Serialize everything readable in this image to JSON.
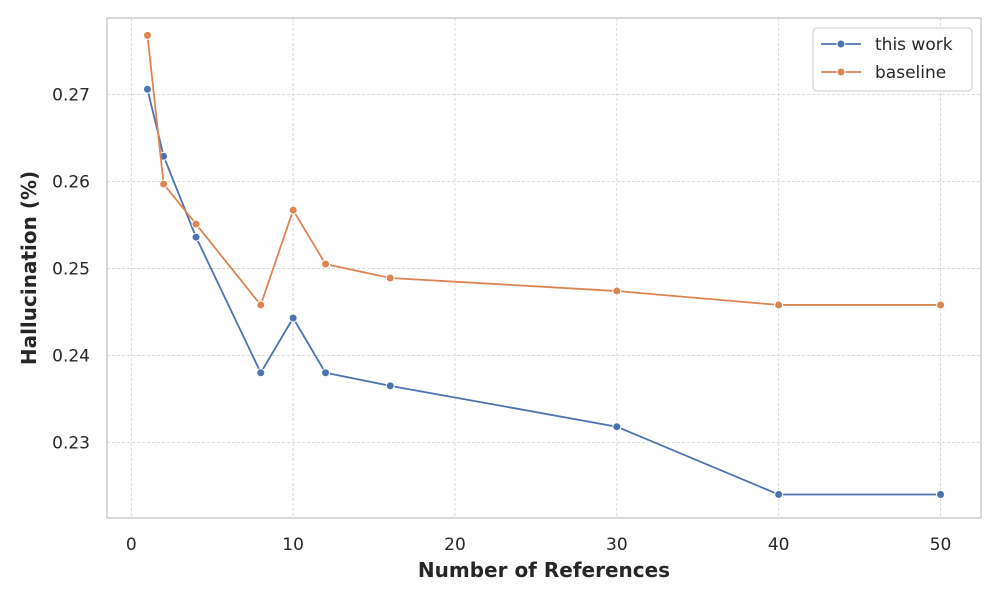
{
  "chart_data": {
    "type": "line",
    "xlabel": "Number of References",
    "ylabel": "Hallucination (%)",
    "xlim": [
      -1.5,
      52.5
    ],
    "ylim": [
      0.2213,
      0.2788
    ],
    "xticks": [
      0,
      10,
      20,
      30,
      40,
      50
    ],
    "yticks": [
      0.23,
      0.24,
      0.25,
      0.26,
      0.27
    ],
    "xtick_labels": [
      "0",
      "10",
      "20",
      "30",
      "40",
      "50"
    ],
    "ytick_labels": [
      "0.23",
      "0.24",
      "0.25",
      "0.26",
      "0.27"
    ],
    "grid": true,
    "legend_position": "top-right",
    "x": [
      1,
      2,
      4,
      8,
      10,
      12,
      16,
      30,
      40,
      50
    ],
    "series": [
      {
        "name": "this work",
        "color": "#4c72b0",
        "values": [
          0.2706,
          0.2629,
          0.2536,
          0.238,
          0.2443,
          0.238,
          0.2365,
          0.2318,
          0.224,
          0.224
        ]
      },
      {
        "name": "baseline",
        "color": "#dd8452",
        "values": [
          0.2768,
          0.2597,
          0.2551,
          0.2458,
          0.2567,
          0.2505,
          0.2489,
          0.2474,
          0.2458,
          0.2458
        ]
      }
    ]
  }
}
